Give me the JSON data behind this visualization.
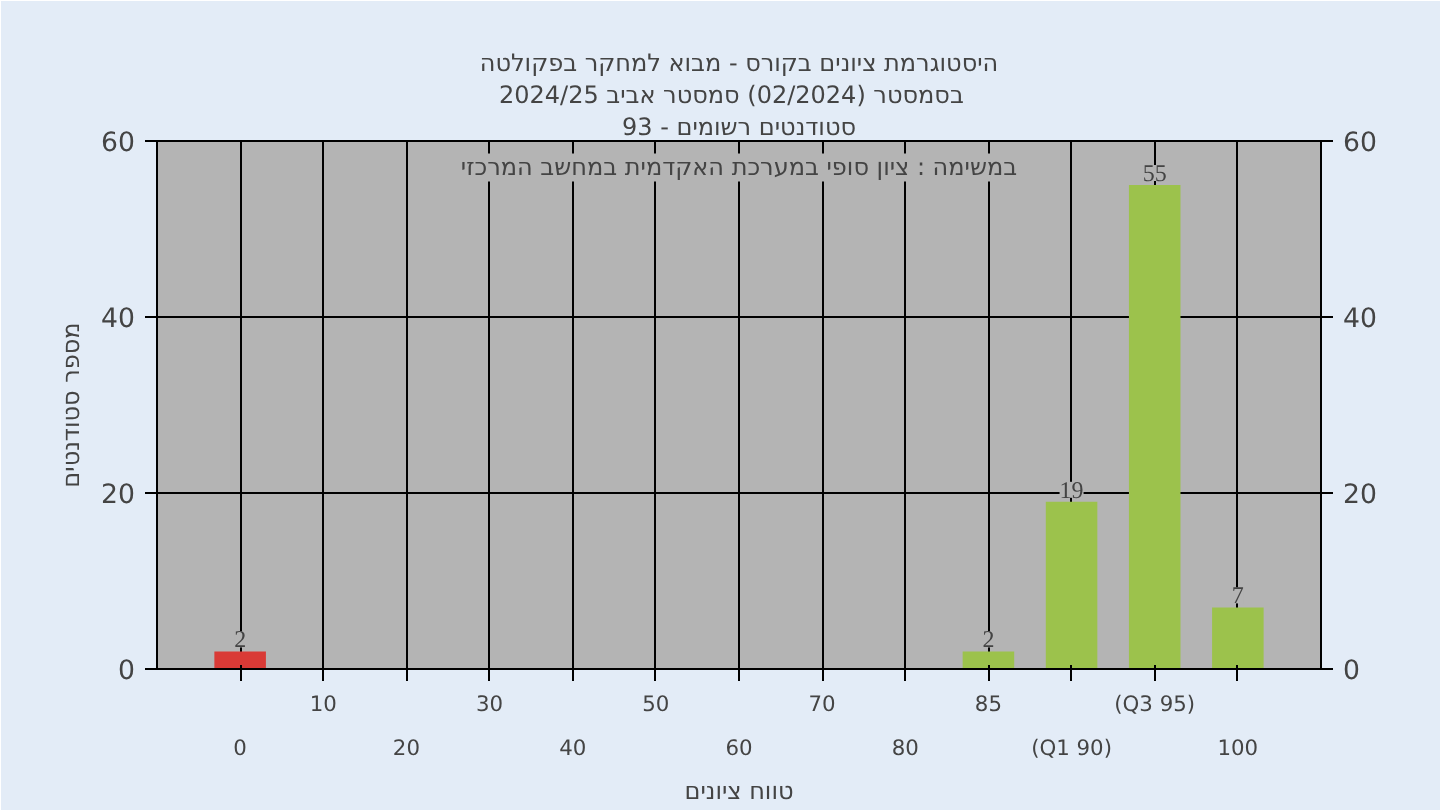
{
  "chart_data": {
    "type": "bar",
    "title": "היסטוגרמת ציונים בקורס - מבוא למחקר בפקולטה",
    "subtitle": "בסמסטר  (02/2024)  סמסטר אביב 2024/25",
    "xlabel": "טווח ציונים",
    "ylabel": "מספר סטודנטים",
    "annotations": [
      "סטודנטים רשומים - 93",
      "במשימה : ציון סופי במערכת האקדמית במחשב המרכזי"
    ],
    "categories": [
      "0",
      "10",
      "20",
      "30",
      "40",
      "50",
      "60",
      "70",
      "80",
      "85",
      "(Q1 90)",
      "(Q3 95)",
      "100"
    ],
    "values": [
      2,
      0,
      0,
      0,
      0,
      0,
      0,
      0,
      0,
      2,
      19,
      55,
      7
    ],
    "colors": [
      "#d93a36",
      "#9cc24c",
      "#9cc24c",
      "#9cc24c",
      "#9cc24c",
      "#9cc24c",
      "#9cc24c",
      "#9cc24c",
      "#9cc24c",
      "#9cc24c",
      "#9cc24c",
      "#9cc24c",
      "#9cc24c"
    ],
    "value_labels": [
      "2",
      null,
      null,
      null,
      null,
      null,
      null,
      null,
      null,
      "2",
      "19",
      "55",
      "7"
    ],
    "ylim": [
      0,
      60
    ],
    "yticks": [
      0,
      20,
      40,
      60
    ],
    "y2lim": [
      0,
      60
    ],
    "y2ticks": [
      0,
      20,
      40,
      60
    ],
    "grid": true
  }
}
